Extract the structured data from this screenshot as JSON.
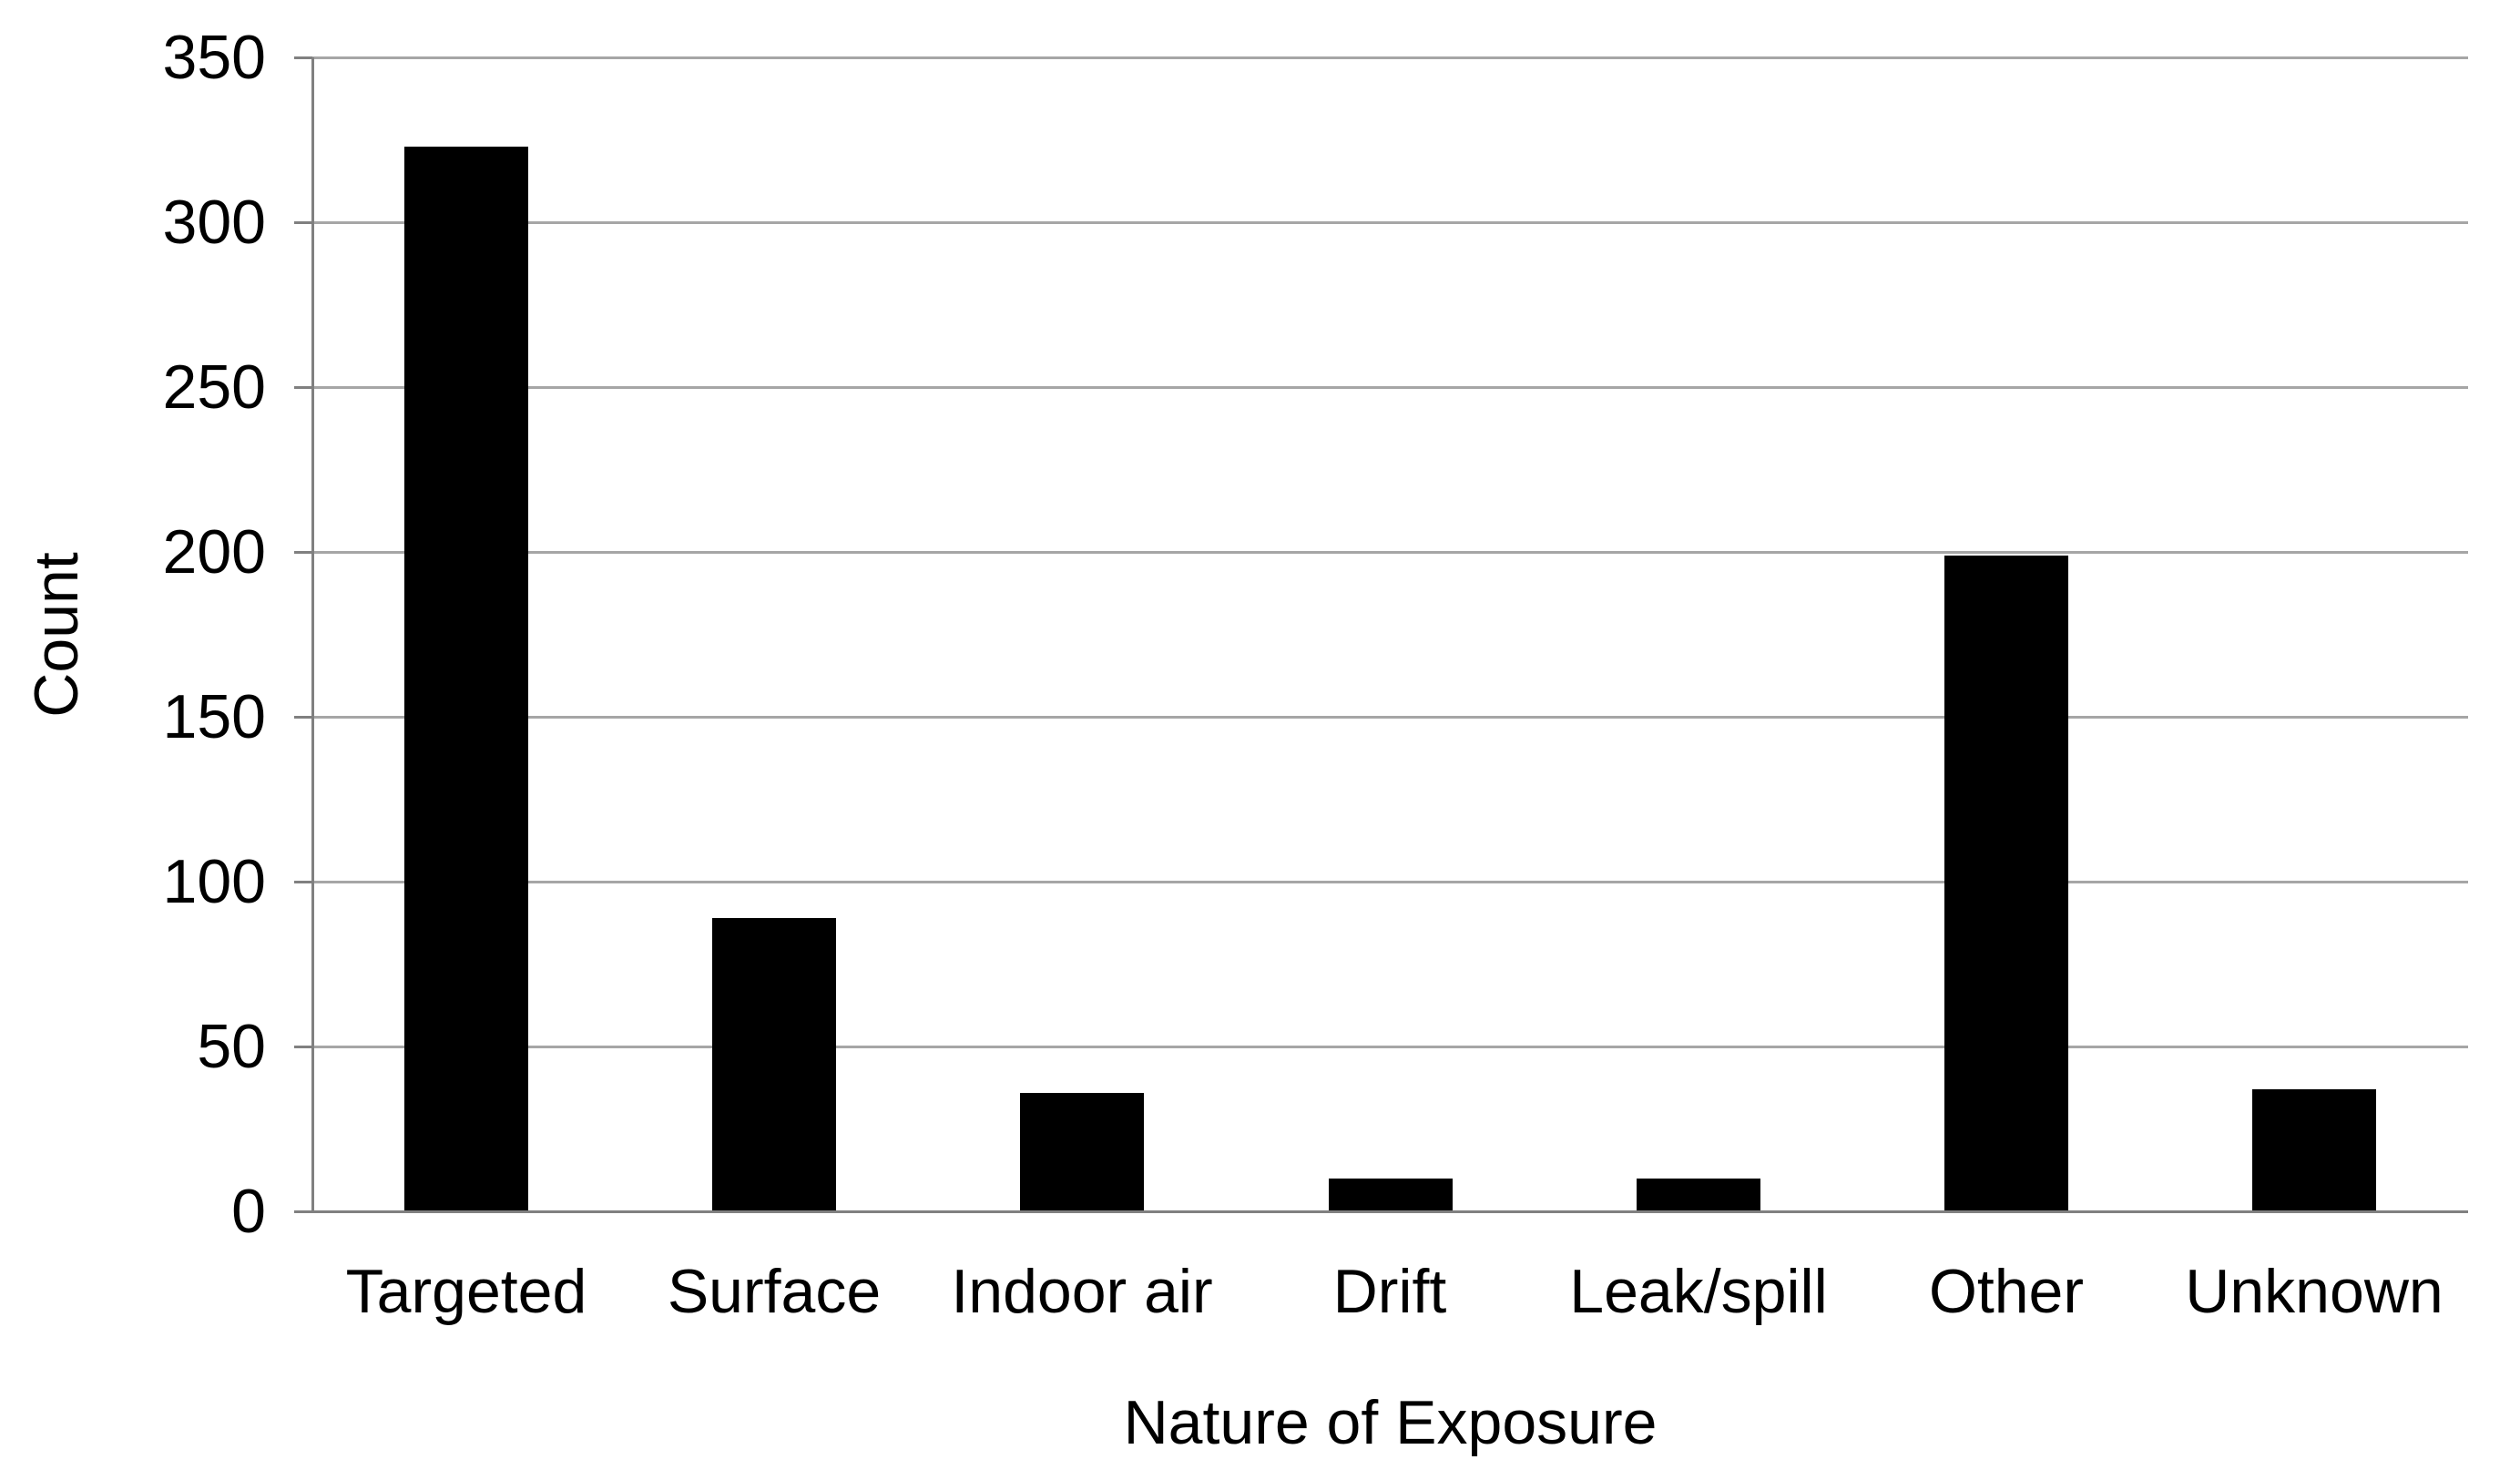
{
  "chart_data": {
    "type": "bar",
    "categories": [
      "Targeted",
      "Surface",
      "Indoor air",
      "Drift",
      "Leak/spill",
      "Other",
      "Unknown"
    ],
    "values": [
      323,
      89,
      36,
      10,
      10,
      199,
      37
    ],
    "title": "",
    "xlabel": "Nature of Exposure",
    "ylabel": "Count",
    "ylim": [
      0,
      350
    ],
    "ytick_step": 50,
    "ytick_labels": [
      "0",
      "50",
      "100",
      "150",
      "200",
      "250",
      "300",
      "350"
    ],
    "grid": true,
    "legend": "none",
    "bar_color": "#000000",
    "gridline_color": "#a6a6a6",
    "axis_color": "#808080",
    "text_color": "#000000",
    "background_color": "#ffffff"
  }
}
